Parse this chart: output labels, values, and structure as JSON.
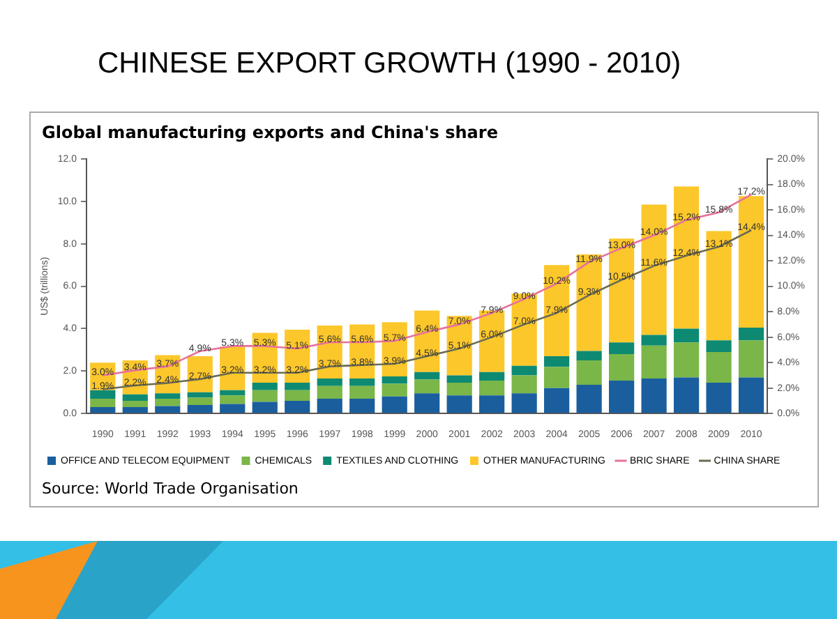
{
  "chart_data": {
    "type": "bar",
    "title": "CHINESE EXPORT GROWTH (1990 - 2010)",
    "subtitle": "Global manufacturing exports and China's share",
    "ylabel": "US$ (trillions)",
    "categories": [
      "1990",
      "1991",
      "1992",
      "1993",
      "1994",
      "1995",
      "1996",
      "1997",
      "1998",
      "1999",
      "2000",
      "2001",
      "2002",
      "2003",
      "2004",
      "2005",
      "2006",
      "2007",
      "2008",
      "2009",
      "2010"
    ],
    "stacked": true,
    "series": [
      {
        "name": "OFFICE AND TELECOM EQUIPMENT",
        "color": "#1a5e9e",
        "values": [
          0.3,
          0.3,
          0.35,
          0.4,
          0.45,
          0.55,
          0.6,
          0.7,
          0.7,
          0.8,
          0.95,
          0.85,
          0.85,
          0.95,
          1.2,
          1.35,
          1.55,
          1.65,
          1.7,
          1.45,
          1.7
        ]
      },
      {
        "name": "CHEMICALS",
        "color": "#7ab648",
        "values": [
          0.4,
          0.3,
          0.35,
          0.35,
          0.4,
          0.55,
          0.5,
          0.6,
          0.6,
          0.6,
          0.65,
          0.6,
          0.7,
          0.85,
          1.0,
          1.15,
          1.25,
          1.55,
          1.65,
          1.45,
          1.75
        ]
      },
      {
        "name": "TEXTILES AND CLOTHING",
        "color": "#0e8a73",
        "values": [
          0.4,
          0.3,
          0.25,
          0.25,
          0.25,
          0.35,
          0.35,
          0.35,
          0.35,
          0.35,
          0.35,
          0.35,
          0.4,
          0.45,
          0.5,
          0.45,
          0.55,
          0.5,
          0.65,
          0.55,
          0.6
        ]
      },
      {
        "name": "OTHER MANUFACTURING",
        "color": "#fcc72a",
        "values": [
          1.3,
          1.6,
          1.8,
          1.7,
          2.05,
          2.35,
          2.5,
          2.5,
          2.55,
          2.55,
          2.9,
          2.8,
          2.9,
          3.4,
          4.3,
          4.55,
          4.9,
          6.15,
          6.7,
          5.15,
          6.2
        ]
      },
      {
        "name": "BRIC SHARE",
        "type": "line",
        "axis": "y2",
        "color": "#e8709c",
        "values": [
          3.0,
          3.4,
          3.7,
          4.9,
          5.3,
          5.3,
          5.1,
          5.6,
          5.6,
          5.7,
          6.4,
          7.0,
          7.9,
          9.0,
          10.2,
          11.9,
          13.0,
          14.0,
          15.2,
          15.8,
          17.2
        ],
        "value_labels": [
          "3.0%",
          "3.4%",
          "3.7%",
          "4.9%",
          "5.3%",
          "5.3%",
          "5.1%",
          "5.6%",
          "5.6%",
          "5.7%",
          "6.4%",
          "7.0%",
          "7.9%",
          "9.0%",
          "10.2%",
          "11.9%",
          "13.0%",
          "14.0%",
          "15.2%",
          "15.8%",
          "17.2%"
        ]
      },
      {
        "name": "CHINA SHARE",
        "type": "line",
        "axis": "y2",
        "color": "#6b6b50",
        "values": [
          1.9,
          2.2,
          2.4,
          2.7,
          3.2,
          3.2,
          3.2,
          3.7,
          3.8,
          3.9,
          4.5,
          5.1,
          6.0,
          7.0,
          7.9,
          9.3,
          10.5,
          11.6,
          12.4,
          13.1,
          14.4
        ],
        "value_labels": [
          "1.9%",
          "2.2%",
          "2.4%",
          "2.7%",
          "3.2%",
          "3.2%",
          "3.2%",
          "3.7%",
          "3.8%",
          "3.9%",
          "4.5%",
          "5.1%",
          "6.0%",
          "7.0%",
          "7.9%",
          "9.3%",
          "10.5%",
          "11.6%",
          "12.4%",
          "13.1%",
          "14.4%"
        ]
      }
    ],
    "ylim": [
      0,
      12
    ],
    "yticks": [
      {
        "value": 0,
        "label": "0.0"
      },
      {
        "value": 2,
        "label": "2.0"
      },
      {
        "value": 4,
        "label": "4.0"
      },
      {
        "value": 6,
        "label": "6.0"
      },
      {
        "value": 8,
        "label": "8.0"
      },
      {
        "value": 10,
        "label": "10.0"
      },
      {
        "value": 12,
        "label": "12.0"
      }
    ],
    "y2lim": [
      0,
      20
    ],
    "y2ticks": [
      {
        "value": 0,
        "label": "0.0%"
      },
      {
        "value": 2,
        "label": "2.0%"
      },
      {
        "value": 4,
        "label": "4.0%"
      },
      {
        "value": 6,
        "label": "6.0%"
      },
      {
        "value": 8,
        "label": "8.0%"
      },
      {
        "value": 10,
        "label": "10.0%"
      },
      {
        "value": 12,
        "label": "12.0%"
      },
      {
        "value": 14,
        "label": "14.0%"
      },
      {
        "value": 16,
        "label": "16.0%"
      },
      {
        "value": 18,
        "label": "18.0%"
      },
      {
        "value": 20,
        "label": "20.0%"
      }
    ],
    "grid": false,
    "legend": "bottom",
    "marker": "none",
    "line_style": "solid",
    "annotations": [
      "Source: World Trade Organisation"
    ]
  }
}
